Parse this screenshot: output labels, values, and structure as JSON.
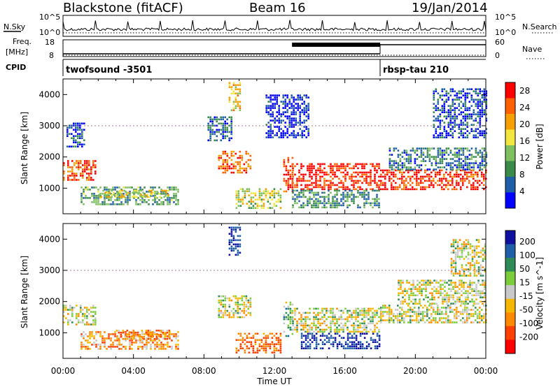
{
  "header": {
    "station": "Blackstone (fitACF)",
    "beam": "Beam 16",
    "date": "19/Jan/2014"
  },
  "panels": {
    "nsky_label": "N.Sky",
    "nsearch_label": "N.Search",
    "nsky_ticks": [
      "10^5",
      "10^0"
    ],
    "nsearch_ticks": [
      "10^5",
      "10^0"
    ],
    "freq_label_1": "Freq.",
    "freq_label_2": "[MHz]",
    "freq_ticks": [
      "18",
      "8"
    ],
    "nave_label": "Nave",
    "nave_ticks": [
      "60",
      "0"
    ],
    "cpid_label": "CPID",
    "cpid_segments": [
      {
        "label": "twofsound -3501",
        "start_hour": 0,
        "end_hour": 18
      },
      {
        "label": "rbsp-tau 210",
        "start_hour": 18,
        "end_hour": 24
      }
    ]
  },
  "colors": {
    "power_scale": [
      "#0000ff",
      "#1f5fa8",
      "#3a8a4a",
      "#7fbf5f",
      "#f4e640",
      "#f5a000",
      "#ff6000",
      "#ff0000"
    ],
    "velocity_scale": [
      "#ff0000",
      "#ff4000",
      "#ff8a00",
      "#f5b800",
      "#c8c8c8",
      "#7ccd3c",
      "#2e8b57",
      "#1f5fa8",
      "#1010a0"
    ]
  },
  "chart_data": [
    {
      "type": "heatmap",
      "title": "Power",
      "ylabel": "Slant Range [km]",
      "xlabel": "Time UT",
      "x_ticks": [
        "00:00",
        "04:00",
        "08:00",
        "12:00",
        "16:00",
        "20:00",
        "00:00"
      ],
      "y_ticks": [
        1000,
        2000,
        3000,
        4000
      ],
      "xlim_hours": [
        0,
        24
      ],
      "ylim_km": [
        180,
        4500
      ],
      "colorbar": {
        "label": "Power [dB]",
        "ticks": [
          4,
          8,
          12,
          16,
          20,
          24,
          28
        ],
        "range": [
          0,
          30
        ]
      },
      "regions": [
        {
          "t0": 0.0,
          "t1": 1.8,
          "r0": 1250,
          "r1": 1900,
          "level": 0.85
        },
        {
          "t0": 1.0,
          "t1": 6.5,
          "r0": 450,
          "r1": 1050,
          "level": 0.35
        },
        {
          "t0": 2.0,
          "t1": 6.0,
          "r0": 700,
          "r1": 950,
          "level": 0.55
        },
        {
          "t0": 0.2,
          "t1": 1.2,
          "r0": 2300,
          "r1": 3100,
          "level": 0.15
        },
        {
          "t0": 8.8,
          "t1": 10.6,
          "r0": 1500,
          "r1": 2200,
          "level": 0.8
        },
        {
          "t0": 8.2,
          "t1": 9.6,
          "r0": 2500,
          "r1": 3300,
          "level": 0.2
        },
        {
          "t0": 9.4,
          "t1": 10.0,
          "r0": 3500,
          "r1": 4400,
          "level": 0.6
        },
        {
          "t0": 9.8,
          "t1": 12.4,
          "r0": 350,
          "r1": 1000,
          "level": 0.5
        },
        {
          "t0": 12.5,
          "t1": 13.0,
          "r0": 900,
          "r1": 2000,
          "level": 0.85
        },
        {
          "t0": 13.0,
          "t1": 18.0,
          "r0": 950,
          "r1": 1800,
          "level": 0.92
        },
        {
          "t0": 13.0,
          "t1": 18.0,
          "r0": 400,
          "r1": 950,
          "level": 0.3
        },
        {
          "t0": 18.0,
          "t1": 24.0,
          "r0": 950,
          "r1": 1600,
          "level": 0.9
        },
        {
          "t0": 18.5,
          "t1": 24.0,
          "r0": 1600,
          "r1": 2300,
          "level": 0.25
        },
        {
          "t0": 21.0,
          "t1": 24.0,
          "r0": 2600,
          "r1": 4200,
          "level": 0.15
        },
        {
          "t0": 11.5,
          "t1": 14.0,
          "r0": 2600,
          "r1": 4000,
          "level": 0.1
        }
      ]
    },
    {
      "type": "heatmap",
      "title": "Velocity",
      "ylabel": "Slant Range [km]",
      "xlabel": "Time UT",
      "x_ticks": [
        "00:00",
        "04:00",
        "08:00",
        "12:00",
        "16:00",
        "20:00",
        "00:00"
      ],
      "y_ticks": [
        1000,
        2000,
        3000,
        4000
      ],
      "xlim_hours": [
        0,
        24
      ],
      "ylim_km": [
        180,
        4500
      ],
      "colorbar": {
        "label": "Velocity [m s^-1]",
        "ticks": [
          200,
          100,
          50,
          15,
          -15,
          -50,
          -100,
          -200
        ],
        "range": [
          -250,
          250
        ]
      },
      "regions": [
        {
          "t0": 0.0,
          "t1": 1.8,
          "r0": 1250,
          "r1": 1900,
          "vel": 0
        },
        {
          "t0": 1.0,
          "t1": 6.5,
          "r0": 450,
          "r1": 1050,
          "vel": -60
        },
        {
          "t0": 3.0,
          "t1": 6.0,
          "r0": 800,
          "r1": 1100,
          "vel": -70
        },
        {
          "t0": 8.8,
          "t1": 10.6,
          "r0": 1500,
          "r1": 2200,
          "vel": 0
        },
        {
          "t0": 9.4,
          "t1": 10.0,
          "r0": 3500,
          "r1": 4400,
          "vel": 180
        },
        {
          "t0": 9.8,
          "t1": 12.4,
          "r0": 350,
          "r1": 1000,
          "vel": -110
        },
        {
          "t0": 12.5,
          "t1": 13.0,
          "r0": 900,
          "r1": 2000,
          "vel": 40
        },
        {
          "t0": 13.0,
          "t1": 18.0,
          "r0": 1000,
          "r1": 1800,
          "vel": 0
        },
        {
          "t0": 13.5,
          "t1": 18.0,
          "r0": 500,
          "r1": 1000,
          "vel": 200
        },
        {
          "t0": 18.0,
          "t1": 24.0,
          "r0": 1300,
          "r1": 1900,
          "vel": 0
        },
        {
          "t0": 19.0,
          "t1": 24.0,
          "r0": 1900,
          "r1": 2700,
          "vel": 0
        },
        {
          "t0": 22.0,
          "t1": 24.0,
          "r0": 2800,
          "r1": 4000,
          "vel": 0
        }
      ]
    }
  ]
}
